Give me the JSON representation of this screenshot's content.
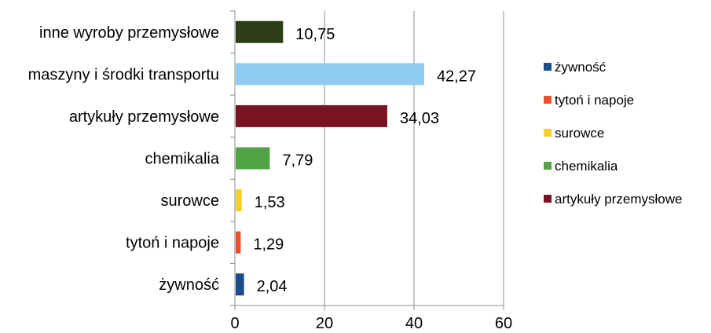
{
  "chart_data": {
    "type": "bar",
    "orientation": "horizontal",
    "categories": [
      "inne wyroby przemysłowe",
      "maszyny i środki transportu",
      "artykuły przemysłowe",
      "chemikalia",
      "surowce",
      "tytoń i napoje",
      "żywność"
    ],
    "values": [
      10.75,
      42.27,
      34.03,
      7.79,
      1.53,
      1.29,
      2.04
    ],
    "value_labels": [
      "10,75",
      "42,27",
      "34,03",
      "7,79",
      "1,53",
      "1,29",
      "2,04"
    ],
    "colors": [
      "#2f3d17",
      "#8ecbee",
      "#7a1321",
      "#52a345",
      "#f5cf2a",
      "#ee4f2b",
      "#1b4c8c"
    ],
    "x_ticks": [
      "0",
      "20",
      "40",
      "60"
    ],
    "xlim": [
      0,
      60
    ],
    "grid": "vertical",
    "legend_position": "right",
    "legend": [
      {
        "label": "żywność",
        "color": "#1b4c8c"
      },
      {
        "label": "tytoń i napoje",
        "color": "#ee4f2b"
      },
      {
        "label": "surowce",
        "color": "#f5cf2a"
      },
      {
        "label": "chemikalia",
        "color": "#52a345"
      },
      {
        "label": "artykuły przemysłowe",
        "color": "#7a1321"
      }
    ]
  }
}
